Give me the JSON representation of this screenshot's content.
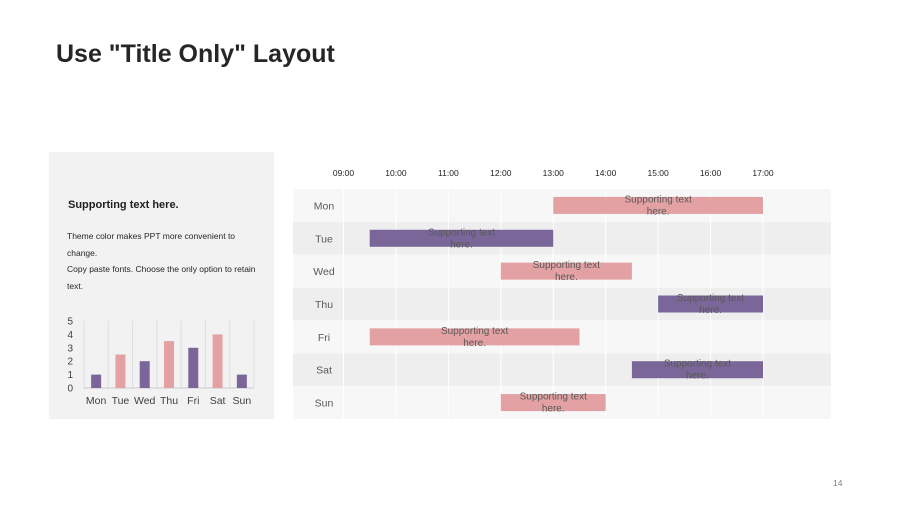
{
  "slide": {
    "title": "Use \"Title Only\" Layout",
    "page_number": "14"
  },
  "panel": {
    "heading": "Supporting text here.",
    "lines": [
      "Theme color makes PPT more convenient to change.",
      "Copy paste fonts. Choose the only option to retain text."
    ]
  },
  "colors": {
    "purple": "#7a6699",
    "pink": "#e3a1a4",
    "panel_bg": "#f2f2f2",
    "row_light": "#f7f7f7",
    "row_dark": "#eeeeee"
  },
  "chart_data": [
    {
      "type": "bar",
      "categories": [
        "Mon",
        "Tue",
        "Wed",
        "Thu",
        "Fri",
        "Sat",
        "Sun"
      ],
      "values": [
        1,
        2.5,
        2,
        3.5,
        3,
        4,
        1
      ],
      "bar_colors": [
        "purple",
        "pink",
        "purple",
        "pink",
        "purple",
        "pink",
        "purple"
      ],
      "ylim": [
        0,
        5
      ],
      "yticks": [
        0,
        1,
        2,
        3,
        4,
        5
      ],
      "title": "",
      "xlabel": "",
      "ylabel": "",
      "grid": "vertical"
    },
    {
      "type": "gantt",
      "x_ticks": [
        "09:00",
        "10:00",
        "11:00",
        "12:00",
        "13:00",
        "14:00",
        "15:00",
        "16:00",
        "17:00"
      ],
      "x_range": [
        "09:00",
        "17:00"
      ],
      "rows": [
        "Mon",
        "Tue",
        "Wed",
        "Thu",
        "Fri",
        "Sat",
        "Sun"
      ],
      "tasks": [
        {
          "row": "Mon",
          "start": "13:00",
          "end": "17:00",
          "color": "pink",
          "label": "Supporting text here."
        },
        {
          "row": "Tue",
          "start": "09:30",
          "end": "13:00",
          "color": "purple",
          "label": "Supporting text here."
        },
        {
          "row": "Wed",
          "start": "12:00",
          "end": "14:30",
          "color": "pink",
          "label": "Supporting text here."
        },
        {
          "row": "Thu",
          "start": "15:00",
          "end": "17:00",
          "color": "purple",
          "label": "Supporting text here."
        },
        {
          "row": "Fri",
          "start": "09:30",
          "end": "13:30",
          "color": "pink",
          "label": "Supporting text here."
        },
        {
          "row": "Sat",
          "start": "14:30",
          "end": "17:00",
          "color": "purple",
          "label": "Supporting text here."
        },
        {
          "row": "Sun",
          "start": "12:00",
          "end": "14:00",
          "color": "pink",
          "label": "Supporting text here."
        }
      ],
      "grid": "vertical"
    }
  ]
}
